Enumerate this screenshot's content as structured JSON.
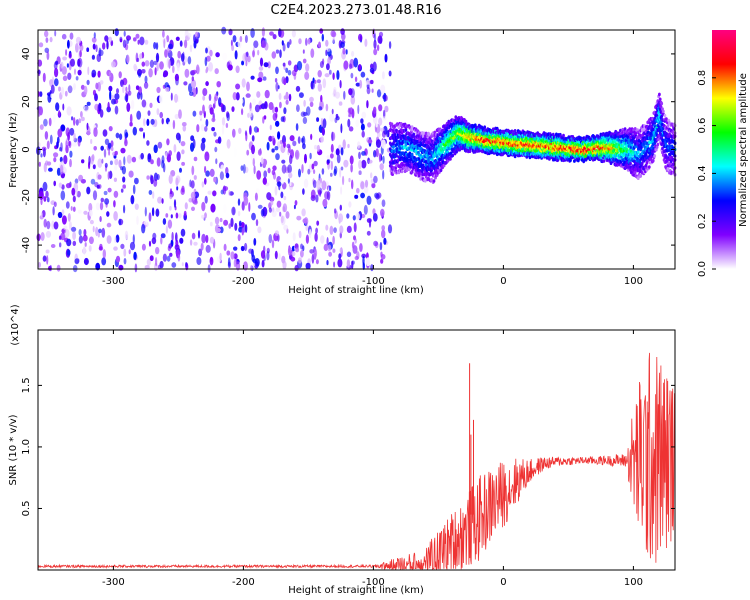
{
  "title": "C2E4.2023.273.01.48.R16",
  "chart_data": [
    {
      "type": "heatmap",
      "xlabel": "Height of straight line (km)",
      "ylabel": "Frequency (Hz)",
      "xlim": [
        -358,
        132
      ],
      "ylim": [
        -50,
        50
      ],
      "xticks": [
        -300,
        -200,
        -100,
        0,
        100
      ],
      "yticks": [
        -40,
        -20,
        0,
        20,
        40
      ],
      "colorbar": {
        "label": "Normalized spectral amplitude",
        "range": [
          0,
          1
        ],
        "ticks": [
          "0.0",
          "0.2",
          "0.4",
          "0.6",
          "0.8"
        ],
        "tick_values": [
          0,
          0.2,
          0.4,
          0.6,
          0.8
        ],
        "colors": [
          "#ffffff",
          "#8000ff",
          "#0000ff",
          "#00ffff",
          "#00ff00",
          "#ffff00",
          "#ff0000",
          "#ff0080"
        ]
      },
      "noise_region": {
        "x": [
          -358,
          -87
        ],
        "y": [
          -50,
          50
        ],
        "level": [
          0,
          0.3
        ]
      },
      "signal_track": {
        "x": [
          -87,
          -75,
          -65,
          -55,
          -45,
          -35,
          -25,
          -15,
          0,
          20,
          40,
          60,
          80,
          95,
          105,
          115,
          120,
          125,
          132
        ],
        "y": [
          0,
          1,
          -2,
          -4,
          2,
          7,
          5,
          4,
          3,
          2,
          1,
          0,
          1,
          0,
          -2,
          4,
          14,
          2,
          0
        ],
        "amplitude": [
          0.3,
          0.4,
          0.4,
          0.35,
          0.55,
          0.65,
          0.8,
          0.85,
          0.85,
          0.85,
          0.85,
          0.9,
          0.8,
          0.5,
          0.35,
          0.4,
          0.45,
          0.3,
          0.3
        ]
      }
    },
    {
      "type": "line",
      "xlabel": "Height of straight line (km)",
      "ylabel": "SNR (10 * v/v)",
      "multiplier": "(x10^4)",
      "xlim": [
        -358,
        132
      ],
      "ylim": [
        0,
        1.95
      ],
      "xticks": [
        -300,
        -200,
        -100,
        0,
        100
      ],
      "yticks": [
        0.5,
        1.0,
        1.5
      ],
      "ytick_labels": [
        "0.5",
        "1.0",
        "1.5"
      ],
      "color": "#ee3333",
      "series": [
        {
          "x": [
            -358,
            -100,
            -62,
            -50,
            -40,
            -30,
            -20,
            -10,
            0,
            10,
            20,
            30,
            40,
            60,
            80,
            95,
            100,
            110,
            120,
            132
          ],
          "y": [
            0.03,
            0.03,
            0.05,
            0.12,
            0.22,
            0.3,
            0.4,
            0.52,
            0.62,
            0.72,
            0.8,
            0.86,
            0.88,
            0.89,
            0.89,
            0.89,
            0.88,
            0.9,
            0.9,
            0.9
          ],
          "spread": [
            0.01,
            0.01,
            0.12,
            0.2,
            0.25,
            0.3,
            0.35,
            0.32,
            0.28,
            0.2,
            0.1,
            0.06,
            0.04,
            0.03,
            0.04,
            0.06,
            0.5,
            0.9,
            0.9,
            0.6
          ]
        }
      ],
      "spikes": [
        {
          "x": -26,
          "y": 1.68
        },
        {
          "x": -23,
          "y": 1.22
        },
        {
          "x": -25,
          "y": 1.1
        }
      ]
    }
  ]
}
